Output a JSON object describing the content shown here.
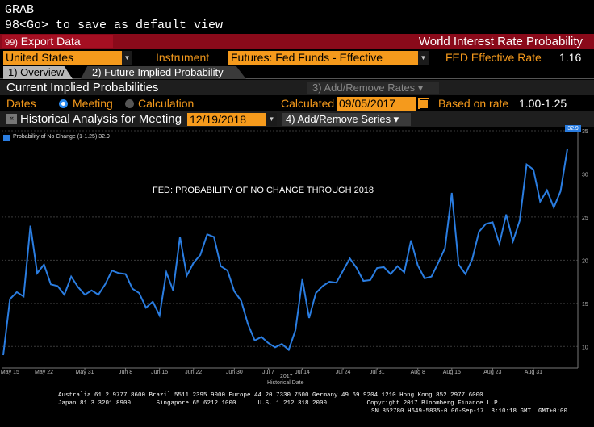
{
  "command": {
    "line1": "GRAB",
    "line2": "98<Go> to save as default view"
  },
  "toolbar": {
    "export_num": "99)",
    "export_label": "Export Data",
    "title": "World Interest Rate Probability"
  },
  "params": {
    "country": "United States",
    "instrument_label": "Instrument",
    "instrument": "Futures: Fed Funds - Effective",
    "fed_rate_label": "FED Effective Rate",
    "fed_rate_value": "1.16"
  },
  "tabs": [
    {
      "label": "1) Overview"
    },
    {
      "label": "2) Future Implied Probability"
    }
  ],
  "section": {
    "title": "Current Implied Probabilities",
    "add_remove_rates": "3) Add/Remove Rates ▾"
  },
  "dates": {
    "label": "Dates",
    "meeting": "Meeting",
    "calculation": "Calculation",
    "calculated_label": "Calculated",
    "calculated_date": "09/05/2017",
    "based_on_label": "Based on rate",
    "based_on_value": "1.00-1.25"
  },
  "historical": {
    "title": "Historical Analysis for Meeting",
    "meeting_date": "12/19/2018",
    "add_series": "4) Add/Remove Series ▾"
  },
  "chart_data": {
    "type": "line",
    "annotation": "FED: PROBABILITY OF NO CHANGE THROUGH 2018",
    "xlabel": "Historical Date",
    "xyear": "2017",
    "ylim": [
      7.5,
      35
    ],
    "yticks": [
      10,
      15,
      20,
      25,
      30,
      35
    ],
    "x_ticks": [
      {
        "label": "May 15",
        "index": 1
      },
      {
        "label": "May 22",
        "index": 6
      },
      {
        "label": "May 31",
        "index": 12
      },
      {
        "label": "Jun 8",
        "index": 18
      },
      {
        "label": "Jun 15",
        "index": 23
      },
      {
        "label": "Jun 22",
        "index": 28
      },
      {
        "label": "Jun 30",
        "index": 34
      },
      {
        "label": "Jul 7",
        "index": 39
      },
      {
        "label": "Jul 14",
        "index": 44
      },
      {
        "label": "Jul 24",
        "index": 50
      },
      {
        "label": "Jul 31",
        "index": 55
      },
      {
        "label": "Aug 8",
        "index": 61
      },
      {
        "label": "Aug 15",
        "index": 66
      },
      {
        "label": "Aug 23",
        "index": 72
      },
      {
        "label": "Aug 31",
        "index": 78
      }
    ],
    "series": [
      {
        "name": "Probability of No Change (1-1.25)",
        "last_value": "32.9",
        "color": "#2a7de1",
        "values": [
          9.0,
          15.5,
          16.3,
          15.8,
          24.0,
          18.5,
          19.5,
          17.2,
          17.0,
          16.0,
          18.1,
          16.9,
          16.0,
          16.5,
          16.0,
          17.2,
          18.8,
          18.5,
          18.4,
          16.7,
          16.2,
          14.5,
          15.2,
          13.6,
          18.6,
          16.5,
          22.7,
          18.2,
          19.7,
          20.6,
          23.0,
          22.7,
          19.3,
          18.8,
          16.4,
          15.3,
          12.6,
          10.7,
          11.1,
          10.4,
          9.9,
          10.3,
          9.6,
          11.9,
          17.8,
          13.3,
          16.2,
          17.0,
          17.5,
          17.4,
          18.8,
          20.2,
          19.1,
          17.6,
          17.7,
          19.1,
          19.2,
          18.4,
          19.3,
          18.6,
          22.3,
          19.4,
          17.9,
          18.1,
          19.7,
          21.4,
          27.8,
          19.5,
          18.4,
          20.1,
          23.3,
          24.2,
          24.4,
          21.9,
          25.3,
          22.2,
          24.6,
          31.1,
          30.5,
          26.8,
          28.1,
          26.1,
          28.0,
          32.9
        ]
      }
    ]
  },
  "footer": {
    "line1": "Australia 61 2 9777 8600 Brazil 5511 2395 9000 Europe 44 20 7330 7500 Germany 49 69 9204 1210 Hong Kong 852 2977 6000",
    "line2": "Japan 81 3 3201 8900       Singapore 65 6212 1000      U.S. 1 212 318 2000           Copyright 2017 Bloomberg Finance L.P.",
    "line3": "SN 852780 H649-5835-0 06-Sep-17  8:10:18 GMT  GMT+0:00"
  },
  "colors": {
    "accent_orange": "#f59a1c",
    "header_red": "#8a0a1a",
    "series_blue": "#2a7de1"
  }
}
